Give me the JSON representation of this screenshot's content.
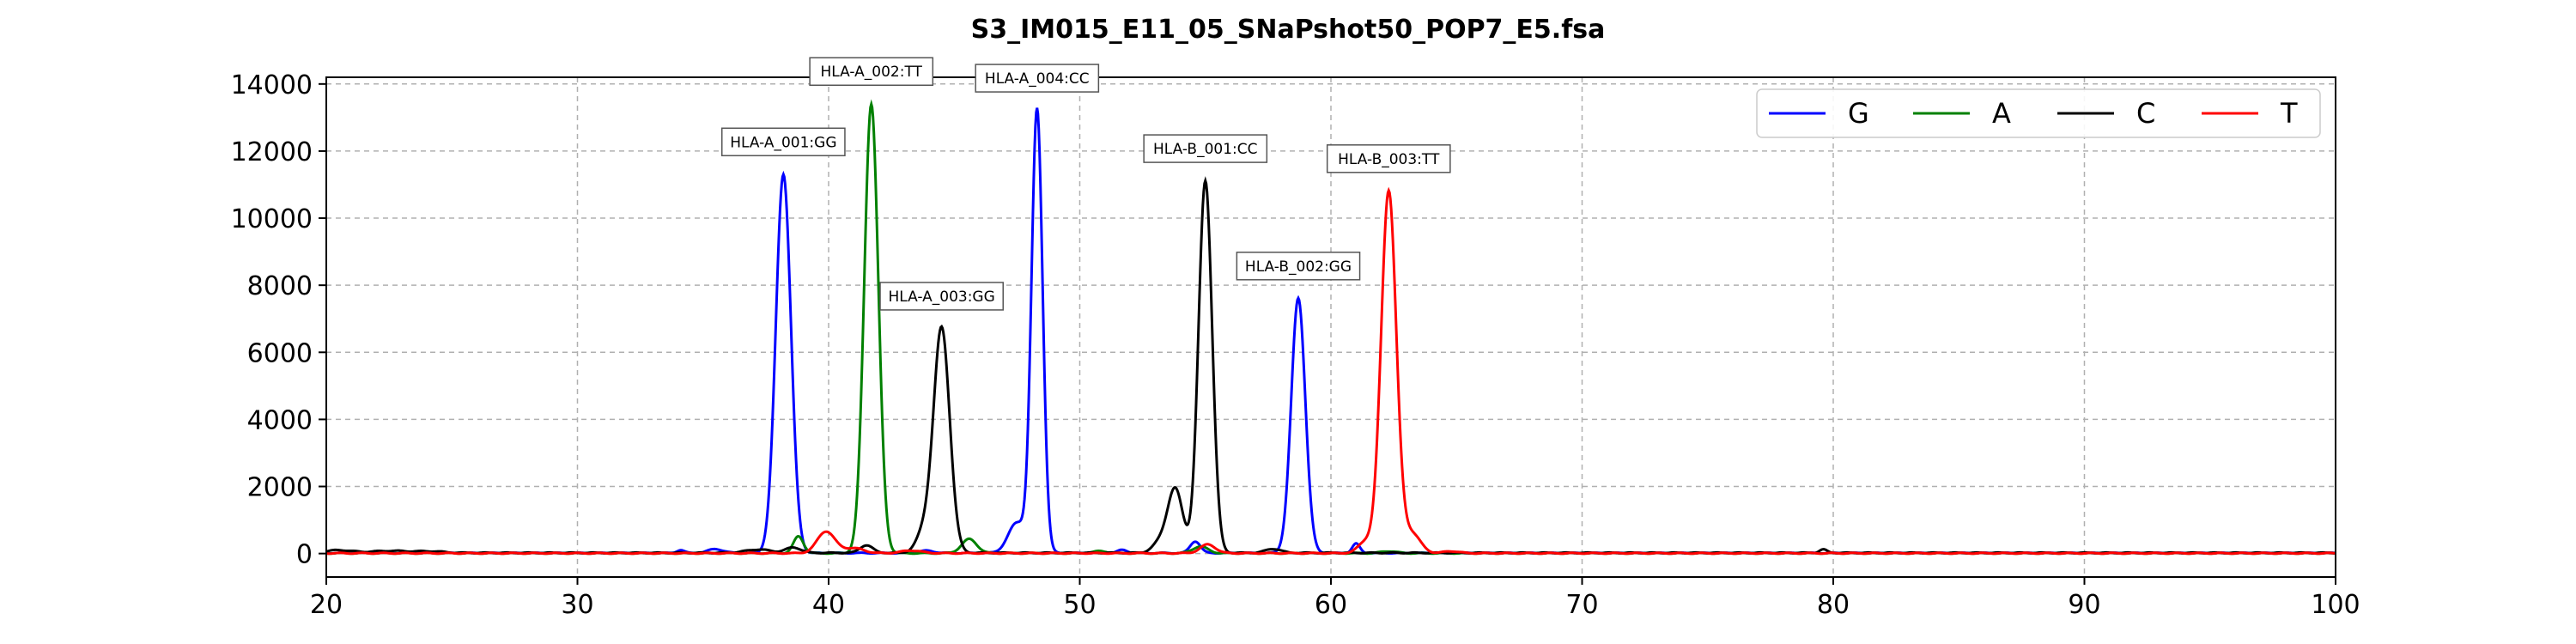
{
  "chart_data": {
    "type": "line",
    "title": "S3_IM015_E11_05_SNaPshot50_POP7_E5.fsa",
    "xlabel": "",
    "ylabel": "",
    "xlim": [
      20,
      100
    ],
    "ylim": [
      -700,
      14200
    ],
    "xticks": [
      20,
      30,
      40,
      50,
      60,
      70,
      80,
      90,
      100
    ],
    "yticks": [
      0,
      2000,
      4000,
      6000,
      8000,
      10000,
      12000,
      14000
    ],
    "grid": true,
    "legend_position": "top-right",
    "series": [
      {
        "name": "G",
        "color": "#0000ff",
        "peaks": [
          [
            34.1,
            90,
            0.15
          ],
          [
            35.5,
            120,
            0.3
          ],
          [
            38.2,
            11300,
            0.3
          ],
          [
            43.9,
            70,
            0.3
          ],
          [
            47.5,
            900,
            0.35
          ],
          [
            48.3,
            13200,
            0.22
          ],
          [
            51.7,
            90,
            0.2
          ],
          [
            54.6,
            350,
            0.2
          ],
          [
            58.7,
            7600,
            0.28
          ],
          [
            61.0,
            280,
            0.15
          ]
        ],
        "baseline": 15
      },
      {
        "name": "A",
        "color": "#008000",
        "peaks": [
          [
            38.8,
            500,
            0.2
          ],
          [
            41.7,
            13400,
            0.28
          ],
          [
            45.6,
            420,
            0.3
          ],
          [
            50.8,
            60,
            0.3
          ],
          [
            54.8,
            200,
            0.3
          ],
          [
            62.3,
            60,
            0.3
          ]
        ],
        "baseline": 10
      },
      {
        "name": "C",
        "color": "#000000",
        "peaks": [
          [
            20.5,
            80,
            0.5
          ],
          [
            22.6,
            60,
            0.8
          ],
          [
            24.2,
            40,
            0.5
          ],
          [
            37.2,
            100,
            0.5
          ],
          [
            38.6,
            160,
            0.3
          ],
          [
            41.5,
            230,
            0.25
          ],
          [
            44.5,
            6700,
            0.32
          ],
          [
            43.8,
            600,
            0.3
          ],
          [
            53.8,
            1900,
            0.3
          ],
          [
            53.2,
            300,
            0.3
          ],
          [
            55.0,
            11100,
            0.27
          ],
          [
            57.7,
            120,
            0.3
          ],
          [
            79.6,
            100,
            0.15
          ]
        ],
        "baseline": 20
      },
      {
        "name": "T",
        "color": "#ff0000",
        "peaks": [
          [
            39.9,
            650,
            0.35
          ],
          [
            41.0,
            150,
            0.4
          ],
          [
            43.3,
            80,
            0.4
          ],
          [
            55.1,
            260,
            0.3
          ],
          [
            61.4,
            350,
            0.3
          ],
          [
            62.3,
            10800,
            0.3
          ],
          [
            63.2,
            600,
            0.35
          ],
          [
            64.8,
            60,
            0.3
          ]
        ],
        "baseline": 10
      }
    ],
    "annotations": [
      {
        "text": "HLA-A_001:GG",
        "x": 38.2,
        "y": 11300
      },
      {
        "text": "HLA-A_002:TT",
        "x": 41.7,
        "y": 13400
      },
      {
        "text": "HLA-A_003:GG",
        "x": 44.5,
        "y": 6700
      },
      {
        "text": "HLA-A_004:CC",
        "x": 48.3,
        "y": 13200
      },
      {
        "text": "HLA-B_001:CC",
        "x": 55.0,
        "y": 11100
      },
      {
        "text": "HLA-B_002:GG",
        "x": 58.7,
        "y": 7600
      },
      {
        "text": "HLA-B_003:TT",
        "x": 62.3,
        "y": 10800
      }
    ]
  }
}
